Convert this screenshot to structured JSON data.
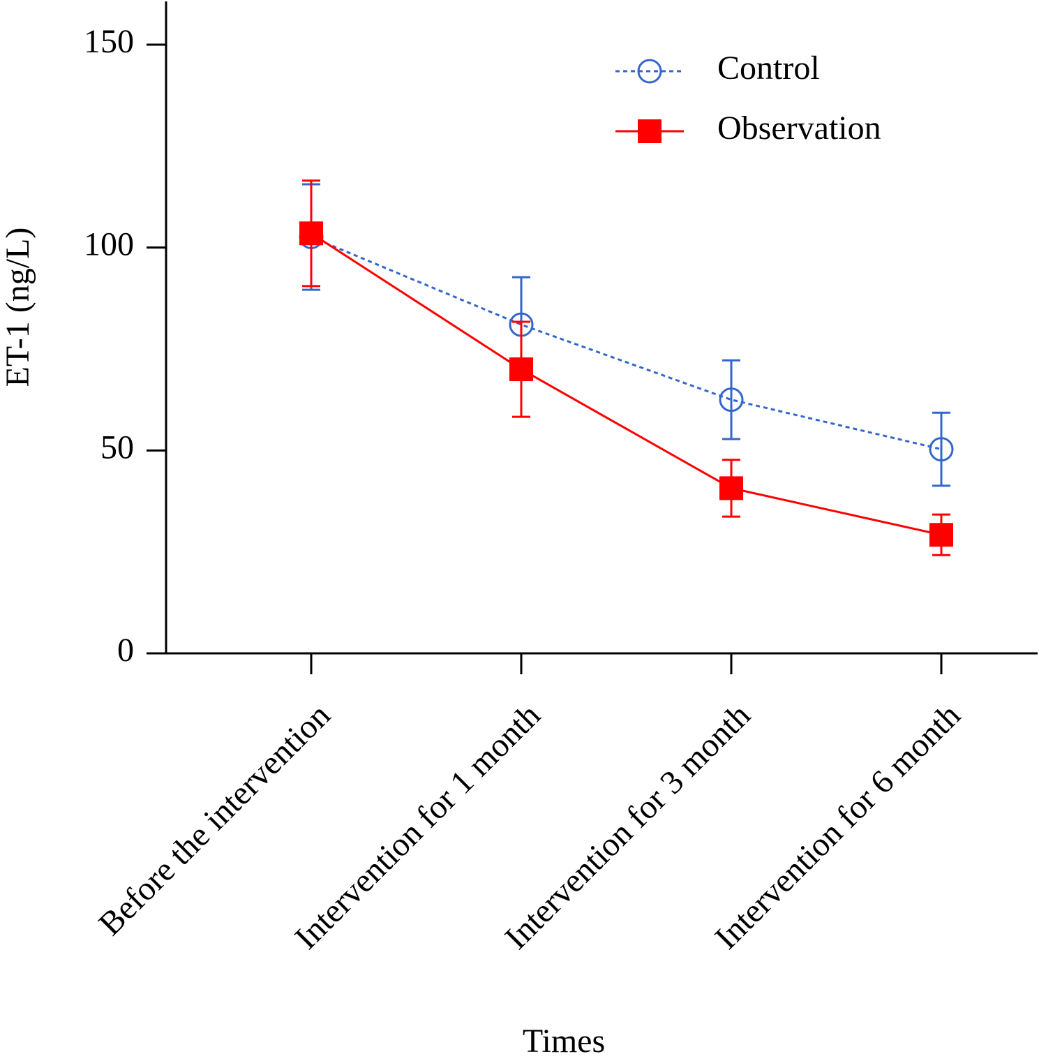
{
  "chart_data": {
    "type": "line",
    "xlabel": "Times",
    "ylabel": "ET-1 (ng/L)",
    "categories": [
      "Before the intervention",
      "Intervention for 1 month",
      "Intervention for 3 month",
      "Intervention for 6 month"
    ],
    "series": [
      {
        "name": "Control",
        "color": "#3366cc",
        "linestyle": "dotted",
        "marker": "circle",
        "values": [
          102.6,
          81,
          62.5,
          50.3
        ],
        "errors": [
          13,
          11.7,
          9.7,
          9
        ]
      },
      {
        "name": "Observation",
        "color": "#ff0000",
        "linestyle": "solid",
        "marker": "square",
        "values": [
          103.5,
          70,
          40.7,
          29.2
        ],
        "errors": [
          13,
          11.7,
          7,
          5
        ]
      }
    ],
    "ylim": [
      0,
      161
    ],
    "yticks": [
      0,
      50,
      100,
      150
    ],
    "legend": "upper right"
  }
}
